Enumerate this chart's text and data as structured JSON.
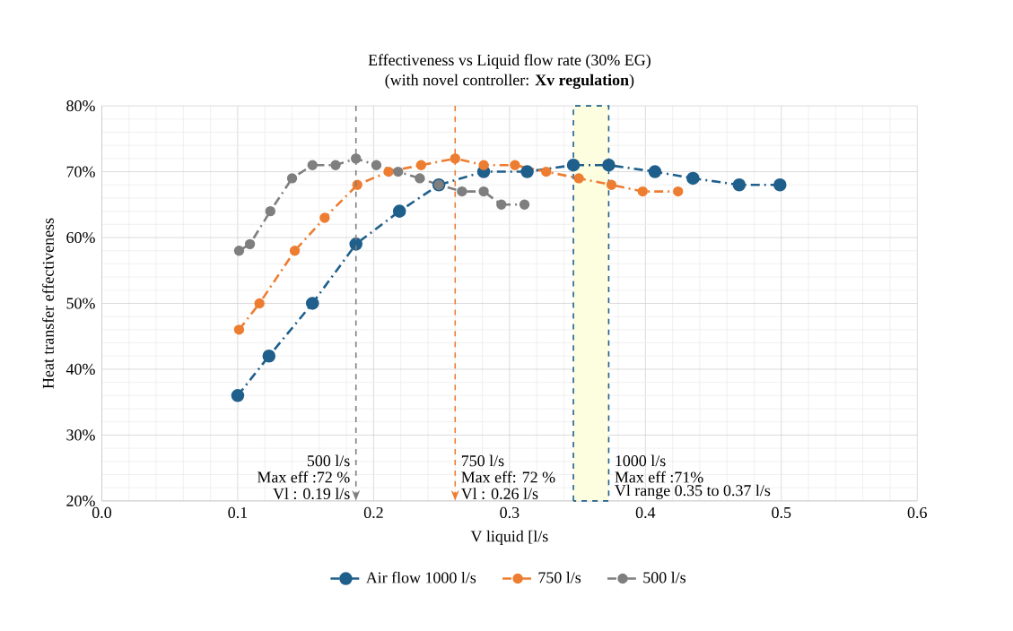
{
  "chart_data": {
    "type": "line",
    "title": "Effectiveness vs Liquid flow rate (30% EG)",
    "subtitle": "(with novel controller: **Xv regulation**)",
    "xlabel": "V liquid [l/s",
    "ylabel": "Heat transfer effectiveness",
    "xlim": [
      0,
      0.6
    ],
    "xticks": [
      {
        "value": 0,
        "label": "0.0"
      },
      0.1,
      0.2,
      0.3,
      0.4,
      0.5,
      0.6
    ],
    "ylim": [
      20,
      80
    ],
    "yticks": [
      {
        "value": 20,
        "label": "20%"
      },
      {
        "value": 30,
        "label": "30%"
      },
      {
        "value": 40,
        "label": "40%"
      },
      {
        "value": 50,
        "label": "50%"
      },
      {
        "value": 60,
        "label": "60%"
      },
      {
        "value": 70,
        "label": "70%"
      },
      {
        "value": 80,
        "label": "80%"
      }
    ],
    "grid": true,
    "legend": "bottom",
    "marker": "circle",
    "line_style": "dashed",
    "series": [
      {
        "name": "Air flow 1000 l/s",
        "color": "#1f5f8b",
        "x": [
          0.1,
          0.123,
          0.155,
          0.187,
          0.219,
          0.248,
          0.281,
          0.313,
          0.347,
          0.373,
          0.407,
          0.435,
          0.469,
          0.499
        ],
        "values": [
          36,
          42,
          50,
          59,
          64,
          68,
          70,
          70,
          71,
          71,
          70,
          69,
          68,
          68
        ]
      },
      {
        "name": "750 l/s",
        "color": "#ed7d31",
        "x": [
          0.101,
          0.116,
          0.142,
          0.164,
          0.188,
          0.211,
          0.235,
          0.26,
          0.281,
          0.304,
          0.327,
          0.351,
          0.375,
          0.398,
          0.424
        ],
        "values": [
          46,
          50,
          58,
          63,
          68,
          70,
          71,
          72,
          71,
          71,
          70,
          69,
          68,
          67,
          67
        ]
      },
      {
        "name": "500 l/s",
        "color": "#7f7f7f",
        "x": [
          0.101,
          0.109,
          0.124,
          0.14,
          0.155,
          0.172,
          0.187,
          0.202,
          0.218,
          0.234,
          0.248,
          0.265,
          0.281,
          0.294,
          0.311
        ],
        "values": [
          58,
          59,
          64,
          69,
          71,
          71,
          72,
          71,
          70,
          69,
          68,
          67,
          67,
          65,
          65
        ]
      }
    ],
    "ref_lines": [
      {
        "axis": "x",
        "value": 0.187,
        "color": "#7f7f7f",
        "line_style": "dashed"
      },
      {
        "axis": "x",
        "value": 0.26,
        "color": "#ed7d31",
        "line_style": "dashed"
      }
    ],
    "bands": [
      {
        "axis": "x",
        "from": 0.347,
        "to": 0.373,
        "color": "#fdfde0"
      }
    ],
    "annotations": [
      "500 l/s",
      "Max eff :72 %",
      "Vl : 0.19 l/s",
      "750 l/s",
      "Max eff: 72 %",
      "Vl : 0.26 l/s",
      "1000 l/s",
      "Max eff :71%",
      "Vl  range 0.35 to 0.37 l/s"
    ]
  }
}
